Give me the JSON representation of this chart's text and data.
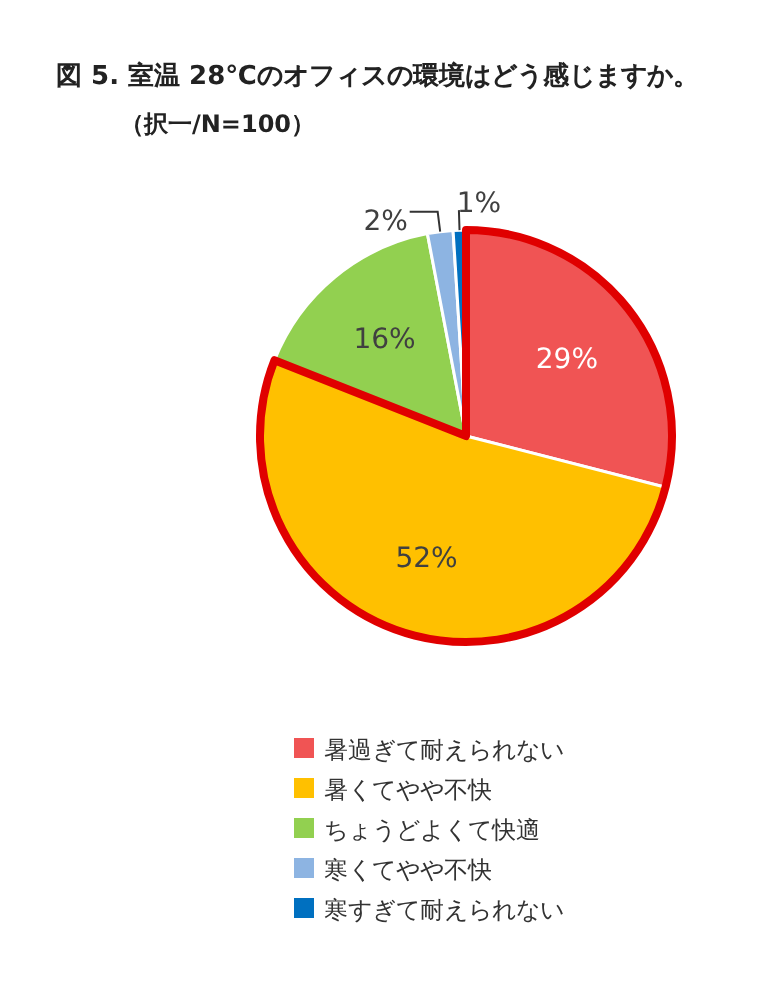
{
  "chart_data": {
    "type": "pie",
    "title": "図 5.  室温 28℃のオフィスの環境はどう感じますか。",
    "subtitle": "（択一/N=100）",
    "categories": [
      "暑過ぎて耐えられない",
      "暑くてやや不快",
      "ちょうどよくて快適",
      "寒くてやや不快",
      "寒すぎて耐えられない"
    ],
    "values": [
      29,
      52,
      16,
      2,
      1
    ],
    "colors": [
      "#f05454",
      "#ffc000",
      "#92d050",
      "#8db4e2",
      "#0070c0"
    ],
    "value_labels": [
      "29%",
      "52%",
      "16%",
      "2%",
      "1%"
    ],
    "legend": "bottom"
  }
}
